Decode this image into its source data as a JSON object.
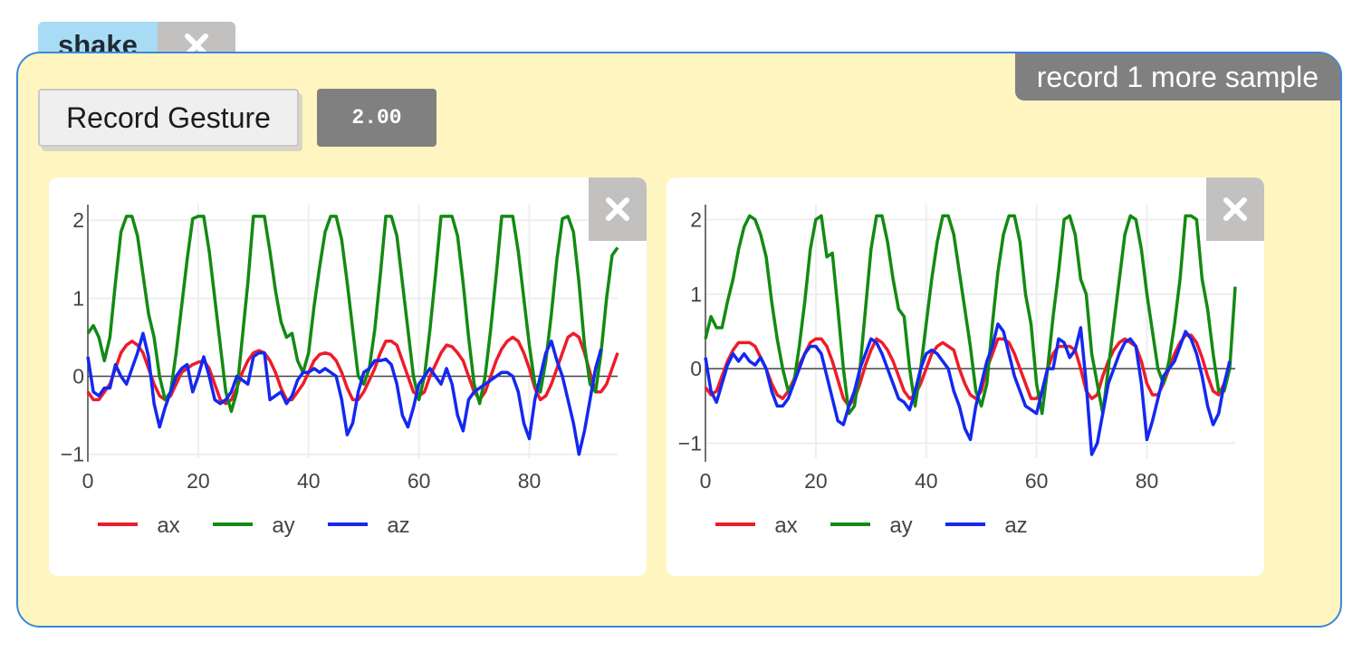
{
  "gesture": {
    "name": "shake",
    "status": "record 1 more sample",
    "record_label": "Record Gesture",
    "threshold": "2.00"
  },
  "colors": {
    "ax": "#ee1c2a",
    "ay": "#138a13",
    "az": "#1428f0",
    "panel": "#fff5c0",
    "border": "#3d87d9"
  },
  "chart_data": [
    {
      "type": "line",
      "xlim": [
        0,
        96
      ],
      "ylim": [
        -1.05,
        2.2
      ],
      "xticks": [
        "0",
        "20",
        "40",
        "60",
        "80"
      ],
      "yticks": [
        "−1",
        "0",
        "1",
        "2"
      ],
      "legend_placement": "bottom",
      "series": [
        {
          "name": "ax",
          "color": "#ee1c2a",
          "values": [
            -0.2,
            -0.3,
            -0.3,
            -0.2,
            -0.1,
            0.1,
            0.3,
            0.4,
            0.45,
            0.4,
            0.3,
            0.1,
            -0.1,
            -0.25,
            -0.3,
            -0.25,
            -0.1,
            0.05,
            0.1,
            0.15,
            0.18,
            0.2,
            0.1,
            -0.1,
            -0.3,
            -0.35,
            -0.3,
            -0.15,
            0.05,
            0.2,
            0.3,
            0.33,
            0.3,
            0.2,
            0.05,
            -0.15,
            -0.3,
            -0.3,
            -0.2,
            -0.1,
            0.05,
            0.2,
            0.28,
            0.3,
            0.28,
            0.2,
            0.05,
            -0.15,
            -0.3,
            -0.3,
            -0.2,
            -0.05,
            0.1,
            0.3,
            0.45,
            0.45,
            0.4,
            0.2,
            0.0,
            -0.2,
            -0.25,
            -0.2,
            0.0,
            0.15,
            0.3,
            0.4,
            0.38,
            0.3,
            0.2,
            0.0,
            -0.2,
            -0.3,
            -0.2,
            0.0,
            0.2,
            0.35,
            0.45,
            0.5,
            0.45,
            0.3,
            0.1,
            -0.15,
            -0.3,
            -0.25,
            -0.1,
            0.1,
            0.3,
            0.5,
            0.55,
            0.5,
            0.3,
            0.05,
            -0.2,
            -0.2,
            -0.1,
            0.1,
            0.3
          ]
        },
        {
          "name": "ay",
          "color": "#138a13",
          "values": [
            0.55,
            0.65,
            0.5,
            0.2,
            0.5,
            1.2,
            1.85,
            2.05,
            2.05,
            1.8,
            1.3,
            0.8,
            0.5,
            0.0,
            -0.3,
            -0.2,
            0.3,
            0.9,
            1.5,
            2.02,
            2.05,
            2.05,
            1.6,
            1.0,
            0.4,
            -0.2,
            -0.45,
            -0.2,
            0.5,
            1.2,
            2.05,
            2.05,
            2.05,
            1.6,
            1.1,
            0.7,
            0.5,
            0.55,
            0.2,
            0.05,
            0.3,
            0.9,
            1.4,
            1.85,
            2.05,
            2.05,
            1.75,
            1.2,
            0.6,
            0.0,
            -0.1,
            0.1,
            0.6,
            1.3,
            2.05,
            2.05,
            1.8,
            1.2,
            0.6,
            0.0,
            -0.3,
            0.0,
            0.6,
            1.3,
            2.05,
            2.05,
            2.05,
            1.8,
            1.2,
            0.5,
            -0.1,
            -0.35,
            0.0,
            0.6,
            1.3,
            2.05,
            2.05,
            2.05,
            1.6,
            1.0,
            0.4,
            -0.1,
            -0.2,
            0.2,
            0.8,
            1.5,
            2.02,
            2.05,
            1.85,
            1.2,
            0.4,
            -0.1,
            -0.2,
            0.3,
            1.0,
            1.55,
            1.65
          ]
        },
        {
          "name": "az",
          "color": "#1428f0",
          "values": [
            0.25,
            -0.2,
            -0.25,
            -0.15,
            -0.15,
            0.15,
            0.0,
            -0.1,
            0.1,
            0.3,
            0.55,
            0.25,
            -0.35,
            -0.65,
            -0.4,
            -0.2,
            0.0,
            0.1,
            0.15,
            -0.2,
            0.0,
            0.25,
            0.0,
            -0.3,
            -0.35,
            -0.3,
            -0.2,
            0.0,
            -0.05,
            -0.1,
            0.25,
            0.3,
            0.3,
            -0.3,
            -0.25,
            -0.2,
            -0.35,
            -0.25,
            -0.05,
            0.05,
            0.05,
            0.1,
            0.05,
            0.1,
            0.05,
            0.0,
            -0.3,
            -0.75,
            -0.6,
            -0.2,
            0.05,
            0.1,
            0.2,
            0.2,
            0.22,
            0.15,
            -0.1,
            -0.5,
            -0.65,
            -0.4,
            -0.1,
            0.0,
            0.1,
            0.0,
            -0.1,
            0.1,
            -0.1,
            -0.5,
            -0.7,
            -0.3,
            -0.2,
            -0.15,
            -0.1,
            -0.05,
            0.0,
            0.05,
            0.05,
            0.0,
            -0.2,
            -0.6,
            -0.8,
            -0.3,
            0.0,
            0.3,
            0.45,
            0.2,
            0.0,
            -0.3,
            -0.6,
            -1.0,
            -0.7,
            -0.3,
            0.1,
            0.35
          ]
        }
      ]
    },
    {
      "type": "line",
      "xlim": [
        0,
        96
      ],
      "ylim": [
        -1.2,
        2.2
      ],
      "xticks": [
        "0",
        "20",
        "40",
        "60",
        "80"
      ],
      "yticks": [
        "−1",
        "0",
        "1",
        "2"
      ],
      "legend_placement": "bottom",
      "series": [
        {
          "name": "ax",
          "color": "#ee1c2a",
          "values": [
            -0.25,
            -0.35,
            -0.3,
            -0.1,
            0.1,
            0.25,
            0.35,
            0.35,
            0.35,
            0.3,
            0.15,
            0.0,
            -0.2,
            -0.35,
            -0.4,
            -0.3,
            -0.15,
            0.05,
            0.2,
            0.35,
            0.4,
            0.4,
            0.3,
            0.1,
            -0.15,
            -0.4,
            -0.5,
            -0.4,
            -0.2,
            0.05,
            0.25,
            0.4,
            0.35,
            0.25,
            0.1,
            -0.1,
            -0.3,
            -0.4,
            -0.35,
            -0.2,
            0.0,
            0.2,
            0.3,
            0.35,
            0.3,
            0.25,
            0.0,
            -0.2,
            -0.35,
            -0.4,
            -0.3,
            0.0,
            0.2,
            0.4,
            0.4,
            0.35,
            0.2,
            0.0,
            -0.2,
            -0.4,
            -0.4,
            -0.3,
            0.0,
            0.2,
            0.3,
            0.3,
            0.3,
            0.25,
            0.0,
            -0.3,
            -0.4,
            -0.35,
            -0.1,
            0.1,
            0.25,
            0.35,
            0.4,
            0.35,
            0.3,
            0.1,
            -0.2,
            -0.35,
            -0.35,
            -0.2,
            0.0,
            0.2,
            0.35,
            0.45,
            0.45,
            0.35,
            0.15,
            -0.1,
            -0.3,
            -0.35,
            -0.2,
            0.0
          ]
        },
        {
          "name": "ay",
          "color": "#138a13",
          "values": [
            0.4,
            0.7,
            0.55,
            0.55,
            0.9,
            1.2,
            1.6,
            1.9,
            2.05,
            2.0,
            1.8,
            1.5,
            0.9,
            0.4,
            0.0,
            -0.3,
            -0.2,
            0.3,
            0.9,
            1.6,
            2.0,
            2.05,
            1.5,
            1.55,
            0.8,
            0.0,
            -0.6,
            -0.5,
            0.0,
            0.8,
            1.6,
            2.05,
            2.05,
            1.7,
            1.2,
            0.8,
            0.7,
            0.0,
            -0.5,
            0.0,
            0.6,
            1.2,
            1.7,
            2.05,
            2.05,
            1.8,
            1.3,
            0.8,
            0.3,
            -0.3,
            -0.5,
            -0.2,
            0.6,
            1.3,
            1.8,
            2.05,
            2.05,
            1.7,
            1.0,
            0.6,
            -0.2,
            -0.6,
            0.0,
            0.7,
            1.3,
            2.0,
            2.05,
            1.8,
            1.2,
            1.0,
            0.2,
            -0.2,
            -0.6,
            0.0,
            0.6,
            1.2,
            1.8,
            2.05,
            2.0,
            1.6,
            1.0,
            0.5,
            0.0,
            -0.2,
            0.1,
            0.6,
            1.2,
            2.05,
            2.05,
            2.0,
            1.2,
            0.8,
            0.2,
            -0.3,
            -0.3,
            0.0,
            1.1
          ]
        },
        {
          "name": "az",
          "color": "#1428f0",
          "values": [
            0.15,
            -0.3,
            -0.45,
            -0.2,
            0.05,
            0.2,
            0.1,
            0.2,
            0.1,
            0.05,
            0.15,
            0.0,
            -0.3,
            -0.5,
            -0.5,
            -0.4,
            -0.2,
            0.0,
            0.2,
            0.3,
            0.3,
            0.2,
            -0.1,
            -0.4,
            -0.7,
            -0.75,
            -0.5,
            -0.3,
            0.0,
            0.2,
            0.4,
            0.35,
            0.2,
            0.0,
            -0.2,
            -0.4,
            -0.45,
            -0.55,
            -0.3,
            0.0,
            0.2,
            0.25,
            0.2,
            0.1,
            0.0,
            -0.3,
            -0.5,
            -0.8,
            -0.95,
            -0.5,
            -0.2,
            0.1,
            0.3,
            0.6,
            0.5,
            0.2,
            -0.1,
            -0.3,
            -0.5,
            -0.55,
            -0.6,
            -0.3,
            0.0,
            0.0,
            0.4,
            0.35,
            0.15,
            0.25,
            0.55,
            -0.2,
            -1.15,
            -1.0,
            -0.6,
            -0.2,
            0.0,
            0.2,
            0.35,
            0.4,
            0.3,
            -0.2,
            -0.95,
            -0.7,
            -0.4,
            -0.1,
            0.0,
            0.1,
            0.3,
            0.5,
            0.4,
            0.2,
            -0.1,
            -0.5,
            -0.75,
            -0.6,
            -0.2,
            0.1
          ]
        }
      ]
    }
  ]
}
